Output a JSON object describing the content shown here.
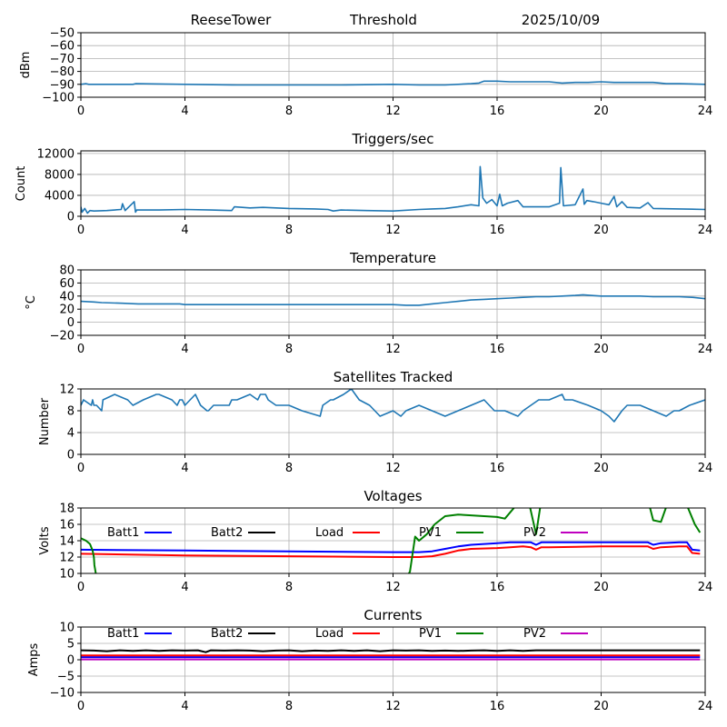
{
  "header": {
    "station": "ReeseTower",
    "mode": "Threshold",
    "date": "2025/10/09"
  },
  "chart_data": [
    {
      "id": "threshold",
      "type": "line",
      "title": "",
      "xlabel": "",
      "ylabel": "dBm",
      "xlim": [
        0,
        24
      ],
      "ylim": [
        -100,
        -50
      ],
      "xticks": [
        0,
        4,
        8,
        12,
        16,
        20,
        24
      ],
      "yticks": [
        -100,
        -90,
        -80,
        -70,
        -60,
        -50
      ],
      "ytick_labels": [
        "−100",
        "−90",
        "−80",
        "−70",
        "−60",
        "−50"
      ],
      "grid": true,
      "series": [
        {
          "name": "Threshold",
          "color": "#1f77b4",
          "x": [
            0,
            0.2,
            0.3,
            2.0,
            2.1,
            4,
            6,
            8,
            10,
            12,
            13,
            14,
            14.5,
            15,
            15.3,
            15.5,
            16,
            16.5,
            17,
            18,
            18.5,
            19,
            19.5,
            20,
            20.5,
            21,
            22,
            22.5,
            23,
            24
          ],
          "y": [
            -90,
            -89.5,
            -90,
            -90,
            -89.5,
            -90,
            -90.5,
            -90.5,
            -90.5,
            -90,
            -90.5,
            -90.5,
            -90,
            -89.5,
            -89,
            -87.5,
            -87.5,
            -88,
            -88,
            -88,
            -89,
            -88.5,
            -88.5,
            -88,
            -88.5,
            -88.5,
            -88.5,
            -89.5,
            -89.5,
            -90
          ]
        }
      ]
    },
    {
      "id": "triggers",
      "type": "line",
      "title": "Triggers/sec",
      "xlabel": "",
      "ylabel": "Count",
      "xlim": [
        0,
        24
      ],
      "ylim": [
        0,
        12500
      ],
      "xticks": [
        0,
        4,
        8,
        12,
        16,
        20,
        24
      ],
      "yticks": [
        0,
        4000,
        8000,
        12000
      ],
      "ytick_labels": [
        "0",
        "4000",
        "8000",
        "12000"
      ],
      "grid": true,
      "series": [
        {
          "name": "Triggers",
          "color": "#1f77b4",
          "x": [
            0,
            0.05,
            0.15,
            0.25,
            0.35,
            0.5,
            1.0,
            1.55,
            1.6,
            1.7,
            2.05,
            2.1,
            2.15,
            3,
            4,
            5,
            5.8,
            5.9,
            6.5,
            7,
            8,
            9,
            9.5,
            9.7,
            10,
            11,
            12,
            13,
            13.5,
            14,
            14.5,
            15,
            15.3,
            15.35,
            15.45,
            15.6,
            15.8,
            16,
            16.1,
            16.2,
            16.4,
            16.8,
            17,
            18,
            18.4,
            18.45,
            18.55,
            19,
            19.3,
            19.35,
            19.45,
            19.7,
            20,
            20.3,
            20.5,
            20.6,
            20.8,
            21,
            21.5,
            21.8,
            22,
            23,
            24
          ],
          "y": [
            1800,
            800,
            1500,
            600,
            1100,
            1000,
            1100,
            1300,
            2400,
            1100,
            2800,
            800,
            1200,
            1200,
            1300,
            1200,
            1100,
            1800,
            1600,
            1700,
            1500,
            1400,
            1300,
            1000,
            1200,
            1100,
            1000,
            1300,
            1400,
            1500,
            1800,
            2200,
            2000,
            9500,
            3500,
            2500,
            3200,
            2000,
            4200,
            2000,
            2500,
            3000,
            1800,
            1800,
            2500,
            9300,
            2000,
            2200,
            5200,
            2300,
            3000,
            2800,
            2500,
            2200,
            3800,
            1800,
            2800,
            1700,
            1600,
            2600,
            1500,
            1400,
            1300
          ]
        }
      ]
    },
    {
      "id": "temperature",
      "type": "line",
      "title": "Temperature",
      "xlabel": "",
      "ylabel": "°C",
      "xlim": [
        0,
        24
      ],
      "ylim": [
        -20,
        80
      ],
      "xticks": [
        0,
        4,
        8,
        12,
        16,
        20,
        24
      ],
      "yticks": [
        -20,
        0,
        20,
        40,
        60,
        80
      ],
      "ytick_labels": [
        "−20",
        "0",
        "20",
        "40",
        "60",
        "80"
      ],
      "grid": true,
      "series": [
        {
          "name": "Temperature",
          "color": "#1f77b4",
          "x": [
            0,
            0.5,
            0.8,
            1.6,
            2.2,
            3.8,
            4,
            8,
            11,
            12,
            12.5,
            13,
            13.5,
            14,
            14.5,
            15,
            15.5,
            16,
            16.5,
            17,
            17.5,
            18,
            18.5,
            19,
            19.3,
            19.6,
            20,
            20.5,
            21,
            21.5,
            22,
            22.5,
            23,
            23.5,
            24
          ],
          "y": [
            32,
            31,
            30,
            29,
            28,
            28,
            27,
            27,
            27,
            27,
            26,
            26,
            28,
            30,
            32,
            34,
            35,
            36,
            37,
            38,
            39,
            39,
            40,
            41,
            42,
            41,
            40,
            40,
            40,
            40,
            39,
            39,
            39,
            38,
            36
          ]
        }
      ]
    },
    {
      "id": "satellites",
      "type": "line",
      "title": "Satellites Tracked",
      "xlabel": "",
      "ylabel": "Number",
      "xlim": [
        0,
        24
      ],
      "ylim": [
        0,
        12
      ],
      "xticks": [
        0,
        4,
        8,
        12,
        16,
        20,
        24
      ],
      "yticks": [
        0,
        4,
        8,
        12
      ],
      "ytick_labels": [
        "0",
        "4",
        "8",
        "12"
      ],
      "grid": true,
      "series": [
        {
          "name": "Satellites",
          "color": "#1f77b4",
          "x": [
            0,
            0.1,
            0.4,
            0.45,
            0.5,
            0.6,
            0.8,
            0.85,
            1.3,
            1.8,
            2.0,
            2.4,
            2.9,
            3.0,
            3.5,
            3.7,
            3.8,
            3.9,
            4.0,
            4.2,
            4.4,
            4.6,
            4.85,
            4.9,
            5.1,
            5.7,
            5.8,
            6.0,
            6.5,
            6.8,
            6.9,
            7.1,
            7.2,
            7.5,
            8,
            8.5,
            9.2,
            9.3,
            9.6,
            9.7,
            10.1,
            10.4,
            10.7,
            11.1,
            11.5,
            12,
            12.3,
            12.5,
            13.0,
            13.5,
            14,
            14.5,
            15,
            15.5,
            15.7,
            15.9,
            16.3,
            16.8,
            17,
            17.3,
            17.6,
            18,
            18.5,
            18.6,
            18.9,
            19.5,
            20,
            20.3,
            20.5,
            20.8,
            21,
            21.5,
            22,
            22.5,
            22.8,
            23.0,
            23.4,
            24
          ],
          "y": [
            9,
            10,
            9,
            10,
            9,
            9,
            8,
            10,
            11,
            10,
            9,
            10,
            11,
            11,
            10,
            9,
            10,
            10,
            9,
            10,
            11,
            9,
            8,
            8,
            9,
            9,
            10,
            10,
            11,
            10,
            11,
            11,
            10,
            9,
            9,
            8,
            7,
            9,
            10,
            10,
            11,
            12,
            10,
            9,
            7,
            8,
            7,
            8,
            9,
            8,
            7,
            8,
            9,
            10,
            9,
            8,
            8,
            7,
            8,
            9,
            10,
            10,
            11,
            10,
            10,
            9,
            8,
            7,
            6,
            8,
            9,
            9,
            8,
            7,
            8,
            8,
            9,
            10
          ]
        }
      ]
    },
    {
      "id": "voltages",
      "type": "line",
      "title": "Voltages",
      "xlabel": "",
      "ylabel": "Volts",
      "xlim": [
        0,
        24
      ],
      "ylim": [
        10,
        18
      ],
      "xticks": [
        0,
        4,
        8,
        12,
        16,
        20,
        24
      ],
      "yticks": [
        10,
        12,
        14,
        16,
        18
      ],
      "ytick_labels": [
        "10",
        "12",
        "14",
        "16",
        "18"
      ],
      "grid": true,
      "legend": "top-inside-horizontal",
      "series": [
        {
          "name": "Batt1",
          "color": "#0000ff",
          "x": [
            0,
            4,
            8,
            12,
            13,
            13.5,
            14,
            14.5,
            15,
            16,
            16.5,
            17,
            17.3,
            17.5,
            17.7,
            18,
            20,
            21.5,
            21.8,
            22,
            22.3,
            23,
            23.3,
            23.5,
            23.8
          ],
          "y": [
            12.9,
            12.8,
            12.7,
            12.6,
            12.6,
            12.7,
            13.0,
            13.3,
            13.5,
            13.7,
            13.8,
            13.8,
            13.8,
            13.5,
            13.8,
            13.8,
            13.8,
            13.8,
            13.8,
            13.5,
            13.7,
            13.8,
            13.8,
            12.9,
            12.8
          ]
        },
        {
          "name": "Batt2",
          "color": "#000000",
          "x": [],
          "y": []
        },
        {
          "name": "Load",
          "color": "#ff0000",
          "x": [
            0,
            4,
            8,
            12,
            13,
            13.5,
            14,
            14.5,
            15,
            16,
            16.5,
            17,
            17.3,
            17.5,
            17.7,
            18,
            20,
            21.5,
            21.8,
            22,
            22.3,
            23,
            23.3,
            23.5,
            23.8
          ],
          "y": [
            12.4,
            12.2,
            12.1,
            12.0,
            12.0,
            12.1,
            12.4,
            12.8,
            13.0,
            13.1,
            13.2,
            13.3,
            13.2,
            12.9,
            13.2,
            13.2,
            13.3,
            13.3,
            13.3,
            13.0,
            13.2,
            13.3,
            13.3,
            12.5,
            12.4
          ]
        },
        {
          "name": "PV1",
          "color": "#008000",
          "x": [
            0,
            0.2,
            0.35,
            0.45,
            0.5,
            0.52,
            0.6
          ],
          "y": [
            14.3,
            14.0,
            13.6,
            12.8,
            12.0,
            11.0,
            9.5
          ],
          "x2": [
            12.5,
            12.65,
            12.85,
            13.0,
            13.3,
            13.6,
            14.0,
            14.5,
            15.0,
            15.5,
            16.0,
            16.3,
            16.7,
            17.0,
            17.2,
            17.5,
            17.7,
            18.0,
            21.5,
            21.8,
            22.0,
            22.3,
            22.6,
            23.0,
            23.3,
            23.6,
            23.8
          ],
          "y2": [
            9.5,
            10.2,
            14.5,
            14.0,
            14.8,
            16.0,
            17.0,
            17.2,
            17.1,
            17.0,
            16.9,
            16.7,
            18.2,
            19.0,
            19.0,
            14.8,
            19.0,
            19.0,
            19.0,
            19.0,
            16.5,
            16.3,
            19.0,
            19.0,
            18.3,
            16.0,
            15.0
          ]
        },
        {
          "name": "PV2",
          "color": "#bf00bf",
          "x": [],
          "y": []
        }
      ]
    },
    {
      "id": "currents",
      "type": "line",
      "title": "Currents",
      "xlabel": "",
      "ylabel": "Amps",
      "xlim": [
        0,
        24
      ],
      "ylim": [
        -10,
        10
      ],
      "xticks": [
        0,
        4,
        8,
        12,
        16,
        20,
        24
      ],
      "yticks": [
        -10,
        -5,
        0,
        5,
        10
      ],
      "ytick_labels": [
        "−10",
        "−5",
        "0",
        "5",
        "10"
      ],
      "grid": true,
      "legend": "top-inside-horizontal",
      "series": [
        {
          "name": "Batt1",
          "color": "#0000ff",
          "x": [
            0,
            23.8
          ],
          "y": [
            0.8,
            0.8
          ]
        },
        {
          "name": "Batt2",
          "color": "#000000",
          "x": [
            0,
            0.5,
            1,
            1.5,
            2,
            2.5,
            3,
            3.5,
            4,
            4.5,
            4.8,
            5,
            5.5,
            6,
            6.5,
            7,
            7.5,
            8,
            8.5,
            9,
            9.5,
            10,
            10.5,
            11,
            11.5,
            12,
            12.5,
            13,
            13.5,
            14,
            14.5,
            15,
            15.5,
            16,
            16.5,
            17,
            17.5,
            18,
            20,
            22,
            23.8
          ],
          "y": [
            2.9,
            2.8,
            2.6,
            2.9,
            2.7,
            2.9,
            2.7,
            2.9,
            2.8,
            2.9,
            2.3,
            2.9,
            2.8,
            2.9,
            2.8,
            2.6,
            2.8,
            2.9,
            2.6,
            2.8,
            2.7,
            2.9,
            2.7,
            2.9,
            2.6,
            2.9,
            2.8,
            2.9,
            2.7,
            2.8,
            2.7,
            2.8,
            2.9,
            2.7,
            2.9,
            2.7,
            2.9,
            2.9,
            2.9,
            2.9,
            2.9
          ]
        },
        {
          "name": "Load",
          "color": "#ff0000",
          "x": [
            0,
            23.8
          ],
          "y": [
            1.3,
            1.3
          ]
        },
        {
          "name": "PV1",
          "color": "#008000",
          "x": [],
          "y": []
        },
        {
          "name": "PV2",
          "color": "#bf00bf",
          "x": [
            0,
            23.8
          ],
          "y": [
            0.1,
            0.1
          ]
        }
      ]
    }
  ]
}
